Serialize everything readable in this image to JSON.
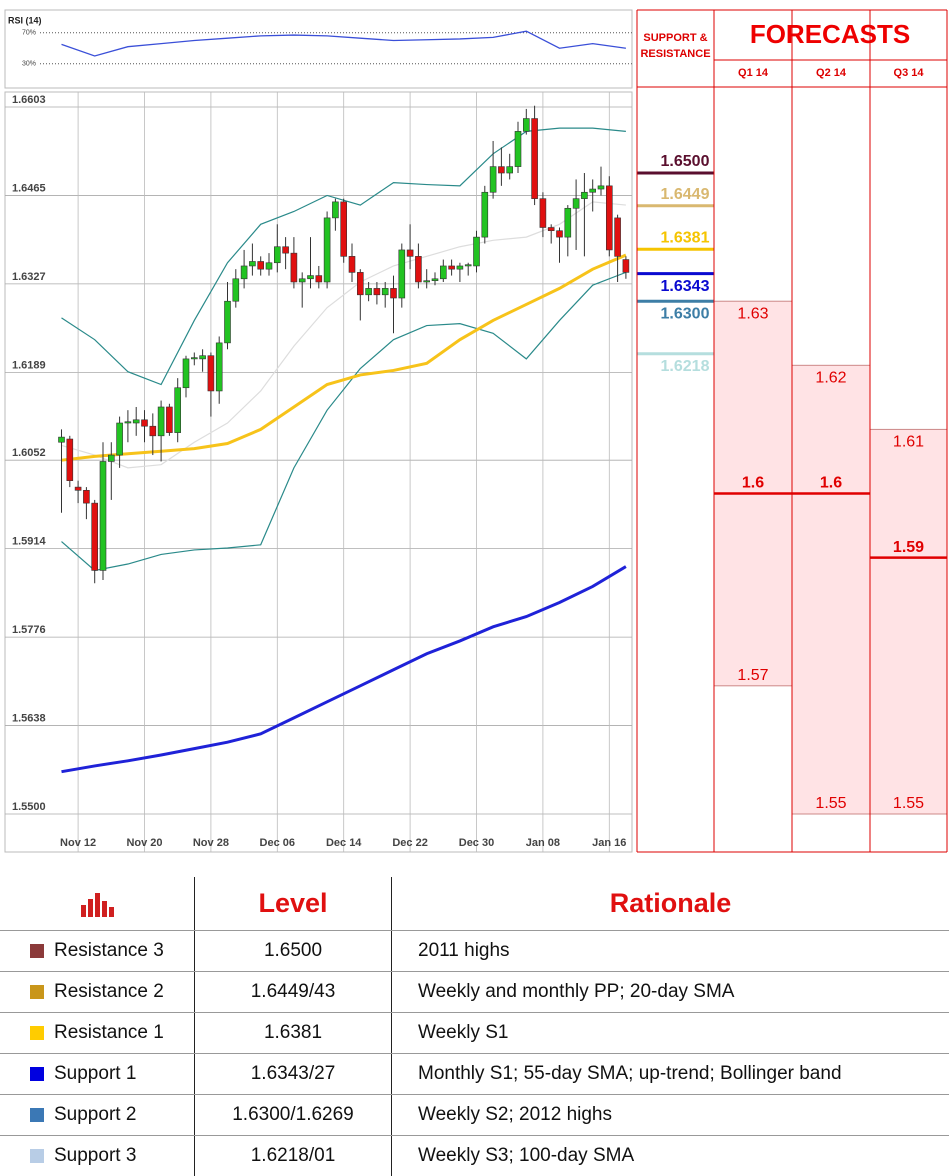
{
  "chart_data": [
    {
      "type": "candlestick",
      "categories": [
        null,
        null,
        "Nov 12",
        null,
        null,
        null,
        null,
        null,
        null,
        null,
        "Nov 20",
        null,
        null,
        null,
        null,
        null,
        null,
        null,
        "Nov 28",
        null,
        null,
        null,
        null,
        null,
        null,
        null,
        "Dec 06",
        null,
        null,
        null,
        null,
        null,
        null,
        null,
        "Dec 14",
        null,
        null,
        null,
        null,
        null,
        null,
        null,
        "Dec 22",
        null,
        null,
        null,
        null,
        null,
        null,
        null,
        "Dec 30",
        null,
        null,
        null,
        null,
        null,
        null,
        null,
        "Jan 08",
        null,
        null,
        null,
        null,
        null,
        null,
        null,
        "Jan 16",
        null,
        null
      ],
      "open": [
        1.608,
        1.6085,
        1.601,
        1.6005,
        1.5985,
        1.588,
        1.605,
        1.606,
        1.611,
        1.611,
        1.6115,
        1.6105,
        1.609,
        1.6135,
        1.6095,
        1.6165,
        1.621,
        1.621,
        1.6215,
        1.616,
        1.6235,
        1.63,
        1.6335,
        1.6355,
        1.6362,
        1.635,
        1.636,
        1.6385,
        1.6375,
        1.633,
        1.6335,
        1.634,
        1.633,
        1.643,
        1.6455,
        1.637,
        1.6345,
        1.631,
        1.632,
        1.631,
        1.632,
        1.6305,
        1.638,
        1.637,
        1.633,
        1.6332,
        1.6335,
        1.6355,
        1.635,
        1.6355,
        1.6355,
        1.64,
        1.647,
        1.651,
        1.65,
        1.651,
        1.6565,
        1.6585,
        1.646,
        1.6415,
        1.641,
        1.64,
        1.6445,
        1.646,
        1.647,
        1.6475,
        1.648,
        1.643,
        1.6365
      ],
      "high": [
        1.61,
        1.609,
        1.602,
        1.601,
        1.599,
        1.608,
        1.608,
        1.612,
        1.613,
        1.6135,
        1.613,
        1.6125,
        1.6145,
        1.614,
        1.618,
        1.6215,
        1.622,
        1.6225,
        1.622,
        1.6245,
        1.633,
        1.635,
        1.638,
        1.639,
        1.637,
        1.6375,
        1.642,
        1.64,
        1.64,
        1.6345,
        1.64,
        1.6355,
        1.644,
        1.646,
        1.646,
        1.639,
        1.635,
        1.633,
        1.633,
        1.633,
        1.634,
        1.639,
        1.642,
        1.639,
        1.635,
        1.6345,
        1.6365,
        1.6365,
        1.636,
        1.636,
        1.641,
        1.648,
        1.655,
        1.654,
        1.653,
        1.658,
        1.66,
        1.6605,
        1.647,
        1.642,
        1.6415,
        1.645,
        1.649,
        1.65,
        1.649,
        1.651,
        1.6495,
        1.6435,
        1.637
      ],
      "low": [
        1.597,
        1.601,
        1.5985,
        1.596,
        1.586,
        1.5865,
        1.599,
        1.604,
        1.608,
        1.609,
        1.608,
        1.606,
        1.605,
        1.609,
        1.608,
        1.615,
        1.62,
        1.619,
        1.612,
        1.614,
        1.6225,
        1.629,
        1.632,
        1.634,
        1.634,
        1.634,
        1.6345,
        1.635,
        1.632,
        1.629,
        1.632,
        1.632,
        1.632,
        1.641,
        1.636,
        1.633,
        1.627,
        1.63,
        1.6295,
        1.629,
        1.625,
        1.629,
        1.635,
        1.632,
        1.632,
        1.6325,
        1.633,
        1.634,
        1.633,
        1.634,
        1.6345,
        1.639,
        1.646,
        1.648,
        1.649,
        1.65,
        1.656,
        1.645,
        1.64,
        1.639,
        1.636,
        1.637,
        1.638,
        1.637,
        1.644,
        1.6465,
        1.637,
        1.633,
        1.6335
      ],
      "close": [
        1.6088,
        1.602,
        1.6005,
        1.5985,
        1.588,
        1.605,
        1.606,
        1.611,
        1.6112,
        1.6115,
        1.6105,
        1.609,
        1.6135,
        1.6095,
        1.6165,
        1.621,
        1.6212,
        1.6215,
        1.616,
        1.6235,
        1.63,
        1.6335,
        1.6355,
        1.6362,
        1.635,
        1.636,
        1.6385,
        1.6375,
        1.633,
        1.6335,
        1.634,
        1.633,
        1.643,
        1.6455,
        1.637,
        1.6345,
        1.631,
        1.632,
        1.631,
        1.632,
        1.6305,
        1.638,
        1.637,
        1.633,
        1.6332,
        1.6335,
        1.6355,
        1.635,
        1.6355,
        1.6357,
        1.64,
        1.647,
        1.651,
        1.65,
        1.651,
        1.6565,
        1.6585,
        1.646,
        1.6415,
        1.641,
        1.64,
        1.6445,
        1.646,
        1.647,
        1.6475,
        1.648,
        1.638,
        1.637,
        1.6345
      ],
      "up_color": "#22c322",
      "down_color": "#e01010",
      "ylim": [
        1.55,
        1.6603
      ],
      "yticks": [
        1.6603,
        1.6465,
        1.6327,
        1.6189,
        1.6052,
        1.5914,
        1.5776,
        1.5638,
        {
          "value": 1.55,
          "label": "1.5500"
        }
      ],
      "grid": true,
      "lines": [
        {
          "color": "#2a8a8a",
          "x": [
            0,
            4,
            8,
            12,
            16,
            20,
            24,
            28,
            32,
            36,
            40,
            44,
            48,
            52,
            56,
            60,
            64,
            68
          ],
          "values": [
            1.6274,
            1.624,
            1.619,
            1.617,
            1.627,
            1.636,
            1.642,
            1.644,
            1.6465,
            1.645,
            1.6485,
            1.6482,
            1.648,
            1.653,
            1.6565,
            1.657,
            1.657,
            1.6565
          ]
        },
        {
          "color": "#2a8a8a",
          "x": [
            0,
            4,
            8,
            12,
            16,
            20,
            24,
            28,
            32,
            36,
            40,
            44,
            48,
            52,
            56,
            60,
            64,
            68
          ],
          "values": [
            1.5925,
            1.588,
            1.589,
            1.5905,
            1.5912,
            1.5915,
            1.592,
            1.604,
            1.613,
            1.6195,
            1.624,
            1.6262,
            1.6265,
            1.625,
            1.621,
            1.627,
            1.6325,
            1.6345
          ]
        },
        {
          "color": "#dddddd",
          "x": [
            0,
            4,
            8,
            12,
            16,
            20,
            24,
            28,
            32,
            36,
            40,
            44,
            48,
            52,
            56,
            60,
            64,
            68
          ],
          "values": [
            1.6075,
            1.606,
            1.604,
            1.6045,
            1.608,
            1.611,
            1.616,
            1.623,
            1.629,
            1.633,
            1.6355,
            1.637,
            1.6385,
            1.6395,
            1.64,
            1.642,
            1.6455,
            1.645
          ]
        },
        {
          "color": "#f7c31a",
          "x": [
            0,
            4,
            8,
            12,
            16,
            20,
            24,
            28,
            32,
            36,
            40,
            44,
            48,
            52,
            56,
            60,
            64,
            68
          ],
          "values": [
            1.6052,
            1.6058,
            1.6062,
            1.6066,
            1.607,
            1.6078,
            1.61,
            1.6135,
            1.617,
            1.6185,
            1.6192,
            1.6203,
            1.624,
            1.627,
            1.6295,
            1.632,
            1.635,
            1.6372
          ]
        },
        {
          "color": "#1f22d8",
          "x": [
            0,
            4,
            8,
            12,
            16,
            20,
            24,
            28,
            32,
            36,
            40,
            44,
            48,
            52,
            56,
            60,
            64,
            68
          ],
          "values": [
            1.5566,
            1.5575,
            1.5583,
            1.5592,
            1.5602,
            1.5612,
            1.5625,
            1.565,
            1.5675,
            1.57,
            1.5725,
            1.575,
            1.577,
            1.5792,
            1.5808,
            1.583,
            1.5855,
            1.5886
          ]
        }
      ],
      "indicator": {
        "title": "RSI (14)",
        "ylim": [
          0,
          100
        ],
        "yticks": [
          {
            "value": 70,
            "label": "70%"
          },
          {
            "value": 30,
            "label": "30%"
          }
        ],
        "color": "#3a4fd8",
        "x": [
          0,
          4,
          8,
          12,
          16,
          20,
          24,
          28,
          32,
          36,
          40,
          44,
          48,
          52,
          56,
          60,
          64,
          68
        ],
        "values": [
          55,
          40,
          52,
          56,
          60,
          63,
          66,
          67,
          66,
          63,
          60,
          61,
          62,
          64,
          72,
          50,
          56,
          50
        ]
      }
    },
    {
      "type": "forecast",
      "title": "FORECASTS",
      "levels_title": "SUPPORT & RESISTANCE",
      "levels": [
        {
          "value": 1.65,
          "label": "1.6500",
          "color": "#5a0f2e"
        },
        {
          "value": 1.6449,
          "color": "#d9b870"
        },
        {
          "value": 1.6381,
          "color": "#f5c400"
        },
        {
          "value": 1.6343,
          "color": "#0a0ad0"
        },
        {
          "value": 1.63,
          "label": "1.6300",
          "color": "#3d7ea6"
        },
        {
          "value": 1.6218,
          "color": "#b5dede"
        }
      ],
      "categories": [
        "Q1 14",
        "Q2 14",
        "Q3 14"
      ],
      "high": [
        1.63,
        1.62,
        1.61
      ],
      "median": [
        1.6,
        1.6,
        1.59
      ],
      "low": [
        1.57,
        1.55,
        1.55
      ],
      "ylim": [
        1.55,
        1.6603
      ],
      "color": "#e00000",
      "fill": "#ffe3e5"
    }
  ],
  "table": {
    "columns": [
      "Level",
      "Rationale"
    ],
    "rows": [
      {
        "color": "#8b3a3a",
        "label": "Resistance 3",
        "level": "1.6500",
        "rationale": "2011 highs"
      },
      {
        "color": "#c9961a",
        "label": "Resistance 2",
        "level": "1.6449/43",
        "rationale": "Weekly and monthly PP; 20-day SMA"
      },
      {
        "color": "#ffcc00",
        "label": "Resistance 1",
        "level": "1.6381",
        "rationale": "Weekly S1"
      },
      {
        "color": "#0000e0",
        "label": "Support 1",
        "level": "1.6343/27",
        "rationale": "Monthly S1; 55-day SMA; up-trend; Bollinger band"
      },
      {
        "color": "#3b78b5",
        "label": "Support 2",
        "level": "1.6300/1.6269",
        "rationale": "Weekly S2; 2012 highs"
      },
      {
        "color": "#b8cde6",
        "label": "Support 3",
        "level": "1.6218/01",
        "rationale": "Weekly S3; 100-day SMA"
      }
    ]
  }
}
